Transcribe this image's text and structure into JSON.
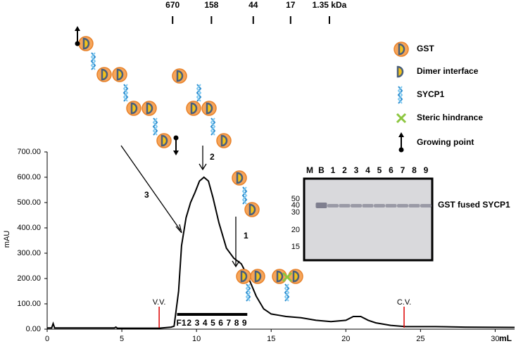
{
  "chart_data": {
    "type": "line",
    "x_label": "mL",
    "y_label": "mAU",
    "xlim": [
      0,
      31.3
    ],
    "xticks": [
      0,
      5,
      10,
      15,
      20,
      25,
      30
    ],
    "ylim": [
      0,
      700
    ],
    "yticks": [
      {
        "value": 0,
        "label": "0.00"
      },
      {
        "value": 100,
        "label": "100.00"
      },
      {
        "value": 200,
        "label": "200.00"
      },
      {
        "value": 300,
        "label": "300.00"
      },
      {
        "value": 400,
        "label": "400.00"
      },
      {
        "value": 500,
        "label": "500.00"
      },
      {
        "value": 600,
        "label": "600.00"
      },
      {
        "value": 700,
        "label": "700.00"
      }
    ],
    "x": [
      0,
      0.3,
      0.4,
      0.5,
      4.5,
      4.6,
      4.7,
      7.5,
      8.3,
      8.5,
      8.8,
      9.0,
      9.3,
      9.6,
      9.9,
      10.2,
      10.5,
      10.8,
      11.1,
      11.5,
      12.0,
      12.5,
      13.0,
      13.5,
      14.0,
      14.5,
      15.0,
      15.5,
      16.0,
      17.0,
      18.0,
      19.0,
      20.0,
      20.5,
      21.0,
      21.5,
      22.0,
      23.0,
      24.0,
      25.0,
      26.0,
      28.0,
      31.3
    ],
    "series": [
      {
        "color": "#000000",
        "values": [
          5,
          5,
          22,
          5,
          5,
          8,
          4,
          4,
          8,
          12,
          150,
          330,
          440,
          500,
          540,
          585,
          600,
          585,
          520,
          420,
          320,
          280,
          258,
          200,
          130,
          80,
          60,
          55,
          50,
          45,
          35,
          30,
          35,
          50,
          50,
          35,
          25,
          15,
          10,
          10,
          10,
          8,
          7
        ]
      }
    ],
    "markers": [
      {
        "label": "V.V.",
        "x": 7.5
      },
      {
        "label": "C.V.",
        "x": 23.9
      }
    ],
    "size_standards": [
      {
        "label": "670",
        "x": 8.4
      },
      {
        "label": "158",
        "x": 11.0
      },
      {
        "label": "44",
        "x": 13.8
      },
      {
        "label": "17",
        "x": 16.3
      },
      {
        "label": "1.35 kDa",
        "x": 18.9
      }
    ],
    "fraction_bar": {
      "range": [
        8.7,
        13.4
      ],
      "labels": [
        "F1",
        "2",
        "3",
        "4",
        "5",
        "6",
        "7",
        "8",
        "9"
      ]
    },
    "arrow_labels": [
      "1",
      "2",
      "3"
    ],
    "legend": [
      "GST",
      "Dimer interface",
      "SYCP1",
      "Steric hindrance",
      "Growing point"
    ],
    "gel": {
      "lanes": [
        "M",
        "B",
        "1",
        "2",
        "3",
        "4",
        "5",
        "6",
        "7",
        "8",
        "9"
      ],
      "mw_labels": [
        "50",
        "40",
        "30",
        "20",
        "15"
      ],
      "band_label": "GST fused SYCP1"
    }
  }
}
